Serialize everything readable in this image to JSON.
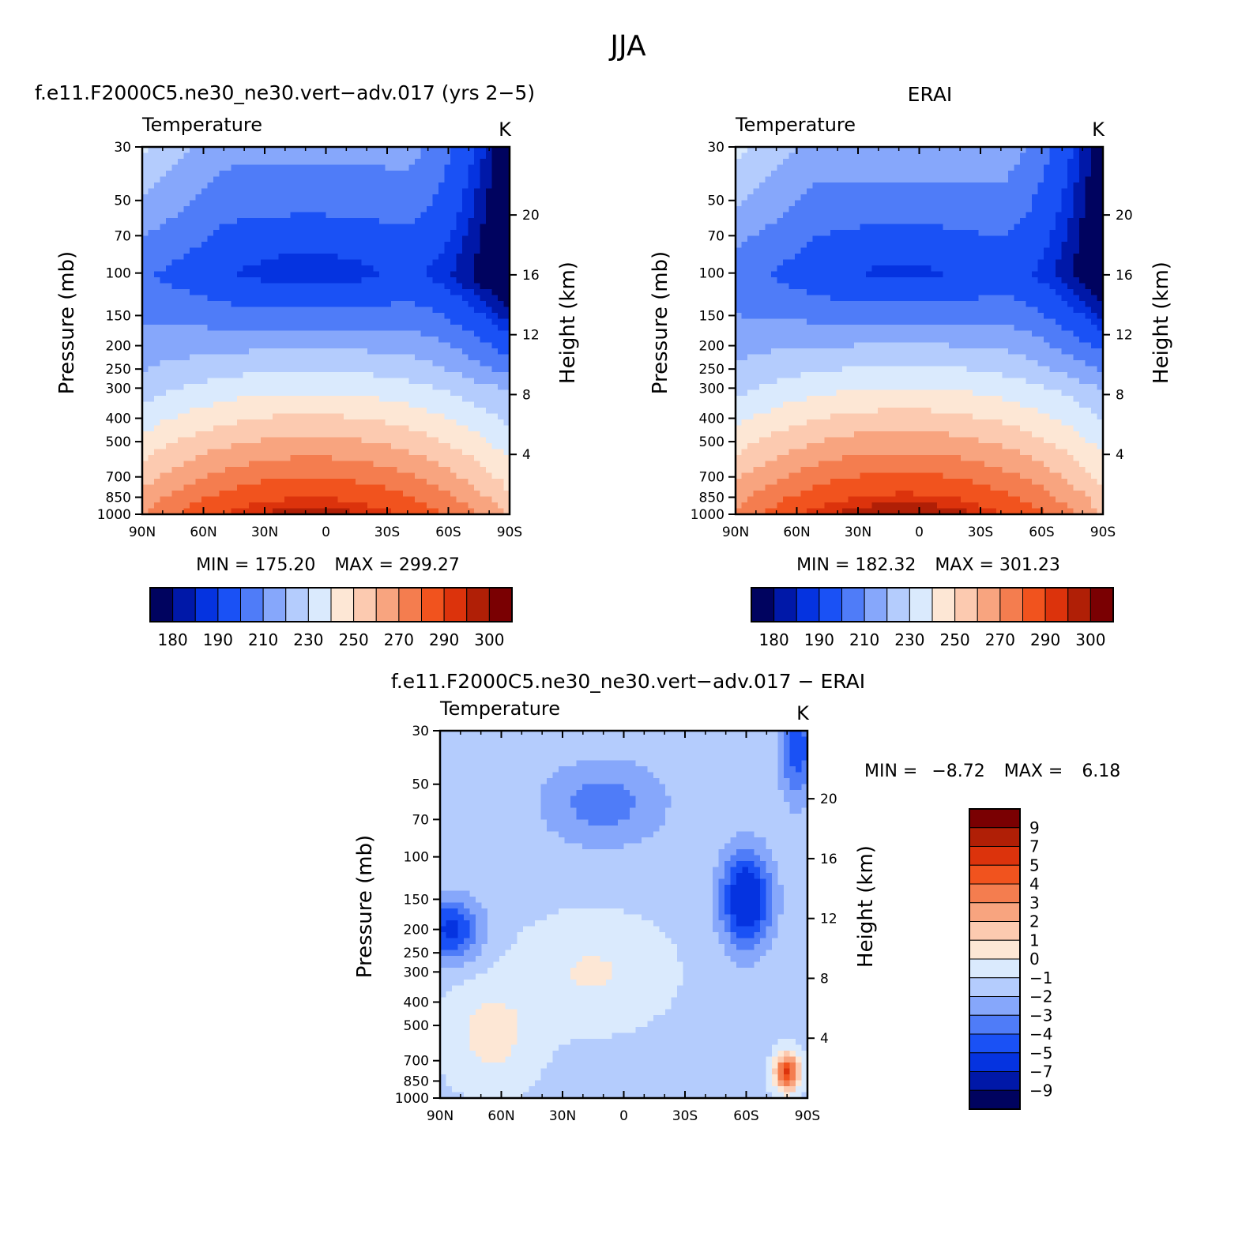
{
  "figure": {
    "title": "JJA"
  },
  "colors": {
    "temperature_levels": [
      "#00035f",
      "#0018a8",
      "#0533e0",
      "#1a51f5",
      "#4f7cf8",
      "#86a7fb",
      "#b4ccfd",
      "#daeafd",
      "#fde7d5",
      "#fccab0",
      "#f8a47f",
      "#f47d4f",
      "#f1531e",
      "#dc330c",
      "#b01f06",
      "#7a0002"
    ],
    "difference_levels": [
      "#7a0002",
      "#b01f06",
      "#dc330c",
      "#f1531e",
      "#f47d4f",
      "#f8a47f",
      "#fccab0",
      "#fde7d5",
      "#daeafd",
      "#b4ccfd",
      "#86a7fb",
      "#4f7cf8",
      "#1a51f5",
      "#0533e0",
      "#0018a8",
      "#00035f"
    ]
  },
  "chart_data": [
    {
      "type": "heatmap",
      "panel_title": "f.e11.F2000C5.ne30_ne30.vert−adv.017 (yrs 2−5)",
      "subtitle": "Temperature",
      "units": "K",
      "xlabel": "",
      "ylabel": "Pressure (mb)",
      "ylabel_right": "Height (km)",
      "x_ticks": [
        "90N",
        "60N",
        "30N",
        "0",
        "30S",
        "60S",
        "90S"
      ],
      "y_ticks": [
        30,
        50,
        70,
        100,
        150,
        200,
        250,
        300,
        400,
        500,
        700,
        850,
        1000
      ],
      "y_right_ticks": [
        20,
        16,
        12,
        8,
        4
      ],
      "min_label": "MIN = 175.20",
      "max_label": "MAX = 299.27",
      "min": 175.2,
      "max": 299.27,
      "colorbar_labels": [
        "180",
        "190",
        "210",
        "230",
        "250",
        "270",
        "290",
        "300"
      ],
      "colorbar_levels": [
        180,
        185,
        190,
        200,
        210,
        220,
        230,
        240,
        250,
        260,
        270,
        280,
        290,
        295,
        300
      ]
    },
    {
      "type": "heatmap",
      "panel_title": "ERAI",
      "subtitle": "Temperature",
      "units": "K",
      "xlabel": "",
      "ylabel": "Pressure (mb)",
      "ylabel_right": "Height (km)",
      "x_ticks": [
        "90N",
        "60N",
        "30N",
        "0",
        "30S",
        "60S",
        "90S"
      ],
      "y_ticks": [
        30,
        50,
        70,
        100,
        150,
        200,
        250,
        300,
        400,
        500,
        700,
        850,
        1000
      ],
      "y_right_ticks": [
        20,
        16,
        12,
        8,
        4
      ],
      "min_label": "MIN = 182.32",
      "max_label": "MAX = 301.23",
      "min": 182.32,
      "max": 301.23,
      "colorbar_labels": [
        "180",
        "190",
        "210",
        "230",
        "250",
        "270",
        "290",
        "300"
      ],
      "colorbar_levels": [
        180,
        185,
        190,
        200,
        210,
        220,
        230,
        240,
        250,
        260,
        270,
        280,
        290,
        295,
        300
      ]
    },
    {
      "type": "heatmap",
      "panel_title": "f.e11.F2000C5.ne30_ne30.vert−adv.017 − ERAI",
      "subtitle": "Temperature",
      "units": "K",
      "xlabel": "",
      "ylabel": "Pressure (mb)",
      "ylabel_right": "Height (km)",
      "x_ticks": [
        "90N",
        "60N",
        "30N",
        "0",
        "30S",
        "60S",
        "90S"
      ],
      "y_ticks": [
        30,
        50,
        70,
        100,
        150,
        200,
        250,
        300,
        400,
        500,
        700,
        850,
        1000
      ],
      "y_right_ticks": [
        20,
        16,
        12,
        8,
        4
      ],
      "min_label": "MIN =",
      "min_value": "−8.72",
      "max_label": "MAX =",
      "max_value": "6.18",
      "min": -8.72,
      "max": 6.18,
      "colorbar_labels": [
        "9",
        "7",
        "5",
        "4",
        "3",
        "2",
        "1",
        "0",
        "−1",
        "−2",
        "−3",
        "−4",
        "−5",
        "−7",
        "−9"
      ],
      "colorbar_levels": [
        9,
        7,
        5,
        4,
        3,
        2,
        1,
        0,
        -1,
        -2,
        -3,
        -4,
        -5,
        -7,
        -9
      ]
    }
  ]
}
